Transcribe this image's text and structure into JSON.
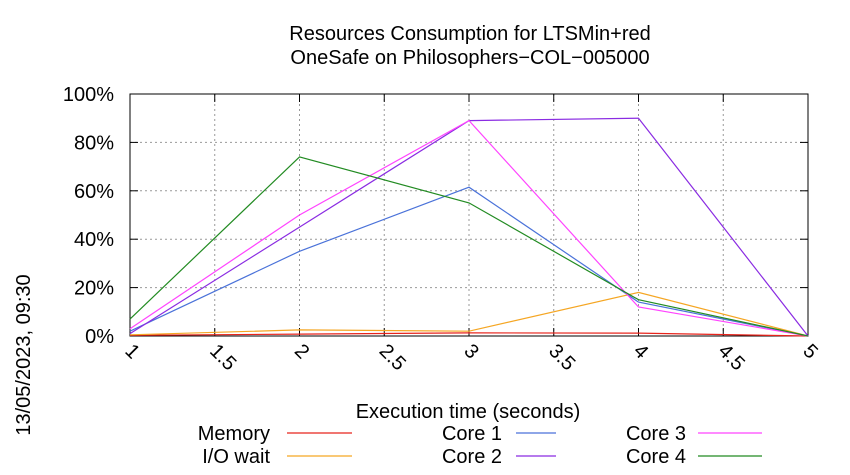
{
  "chart_data": {
    "type": "line",
    "title_lines": [
      "Resources Consumption for LTSMin+red",
      "OneSafe on Philosophers−COL−005000"
    ],
    "xlabel": "Execution time (seconds)",
    "ylabel": "",
    "side_label": "13/05/2023, 09:30",
    "xlim": [
      1,
      5
    ],
    "ylim": [
      0,
      100
    ],
    "x_ticks": [
      "1",
      "1.5",
      "2",
      "2.5",
      "3",
      "3.5",
      "4",
      "4.5",
      "5"
    ],
    "x_tick_values": [
      1,
      1.5,
      2,
      2.5,
      3,
      3.5,
      4,
      4.5,
      5
    ],
    "y_ticks": [
      "0%",
      "20%",
      "40%",
      "60%",
      "80%",
      "100%"
    ],
    "y_tick_values": [
      0,
      20,
      40,
      60,
      80,
      100
    ],
    "grid": true,
    "legend_position": "bottom",
    "x": [
      1,
      2,
      3,
      4,
      5
    ],
    "series": [
      {
        "name": "Memory",
        "color": "#e8241c",
        "values": [
          0.3,
          0.8,
          1.3,
          1.2,
          0
        ]
      },
      {
        "name": "I/O wait",
        "color": "#f5a623",
        "values": [
          0.5,
          2.5,
          2,
          18,
          0
        ]
      },
      {
        "name": "Core 1",
        "color": "#4a72d9",
        "values": [
          2,
          35,
          61.5,
          14,
          0
        ]
      },
      {
        "name": "Core 2",
        "color": "#8a2be2",
        "values": [
          1,
          45,
          89,
          90,
          0
        ]
      },
      {
        "name": "Core 3",
        "color": "#ff44ff",
        "values": [
          3,
          50,
          89,
          12,
          0
        ]
      },
      {
        "name": "Core 4",
        "color": "#228b22",
        "values": [
          7,
          74,
          55,
          15,
          0
        ]
      }
    ]
  }
}
